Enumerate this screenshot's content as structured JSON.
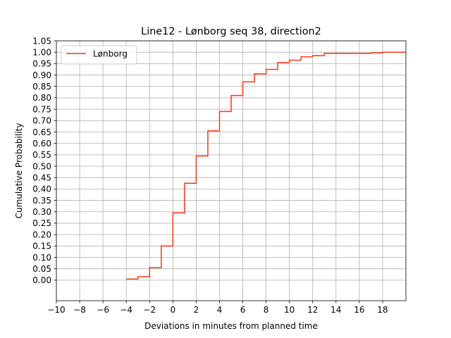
{
  "chart_data": {
    "type": "line",
    "step": "post",
    "title": "Line12 - Lønborg seq 38, direction2",
    "xlabel": "Deviations in minutes from planned time",
    "ylabel": "Cumulative Probability",
    "xlim": [
      -10,
      20
    ],
    "ylim": [
      -0.09,
      1.05
    ],
    "xticks": [
      -10,
      -8,
      -6,
      -4,
      -2,
      0,
      2,
      4,
      6,
      8,
      10,
      12,
      14,
      16,
      18
    ],
    "xtick_labels": [
      "−10",
      "−8",
      "−6",
      "−4",
      "−2",
      "0",
      "2",
      "4",
      "6",
      "8",
      "10",
      "12",
      "14",
      "16",
      "18"
    ],
    "yticks": [
      0,
      0.05,
      0.1,
      0.15,
      0.2,
      0.25,
      0.3,
      0.35,
      0.4,
      0.45,
      0.5,
      0.55,
      0.6,
      0.65,
      0.7,
      0.75,
      0.8,
      0.85,
      0.9,
      0.95,
      1.0,
      1.05
    ],
    "ytick_labels": [
      "0.00",
      "0.05",
      "0.10",
      "0.15",
      "0.20",
      "0.25",
      "0.30",
      "0.35",
      "0.40",
      "0.45",
      "0.50",
      "0.55",
      "0.60",
      "0.65",
      "0.70",
      "0.75",
      "0.80",
      "0.85",
      "0.90",
      "0.95",
      "1.00",
      "1.05"
    ],
    "grid": true,
    "legend_position": "upper-left",
    "series": [
      {
        "name": "Lønborg",
        "color": "#ff3514",
        "x": [
          -4,
          -3,
          -2,
          -1,
          0,
          1,
          2,
          3,
          4,
          5,
          6,
          7,
          8,
          9,
          10,
          11,
          12,
          13,
          17,
          18,
          20
        ],
        "y": [
          0.005,
          0.015,
          0.055,
          0.15,
          0.295,
          0.425,
          0.545,
          0.655,
          0.74,
          0.81,
          0.87,
          0.905,
          0.925,
          0.955,
          0.965,
          0.98,
          0.985,
          0.995,
          0.997,
          1.0,
          1.0
        ]
      }
    ]
  }
}
